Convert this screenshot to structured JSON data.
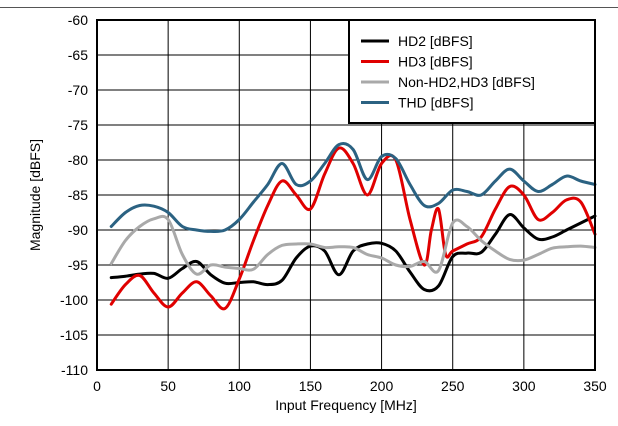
{
  "chart_data": {
    "type": "line",
    "title": "",
    "xlabel": "Input Frequency [MHz]",
    "ylabel": "Magnitude [dBFS]",
    "xlim": [
      0,
      350
    ],
    "ylim": [
      -110,
      -60
    ],
    "xticks": [
      0,
      50,
      100,
      150,
      200,
      250,
      300,
      350
    ],
    "yticks": [
      -60,
      -65,
      -70,
      -75,
      -80,
      -85,
      -90,
      -95,
      -100,
      -105,
      -110
    ],
    "xtick_labels": [
      "0",
      "50",
      "100",
      "150",
      "200",
      "250",
      "300",
      "350"
    ],
    "ytick_labels": [
      "-60",
      "-65",
      "-70",
      "-75",
      "-80",
      "-85",
      "-90",
      "-95",
      "-100",
      "-105",
      "-110"
    ],
    "grid": true,
    "legend_position": "top-right",
    "series": [
      {
        "name": "HD2 [dBFS]",
        "color": "#000000",
        "x": [
          10,
          20,
          30,
          40,
          50,
          60,
          70,
          80,
          90,
          100,
          110,
          120,
          130,
          140,
          150,
          160,
          170,
          180,
          190,
          200,
          210,
          220,
          230,
          240,
          250,
          260,
          270,
          280,
          290,
          300,
          310,
          320,
          330,
          340,
          350
        ],
        "y": [
          -96.8,
          -96.6,
          -96.3,
          -96.2,
          -96.9,
          -95.5,
          -94.5,
          -96.4,
          -97.6,
          -97.5,
          -97.4,
          -97.8,
          -97.2,
          -94.0,
          -92.3,
          -93.0,
          -96.4,
          -93.0,
          -92.0,
          -91.9,
          -93.0,
          -96.0,
          -98.5,
          -98.0,
          -93.8,
          -93.3,
          -93.2,
          -90.6,
          -87.8,
          -89.7,
          -91.3,
          -91.0,
          -90.0,
          -89.0,
          -88.0
        ]
      },
      {
        "name": "HD3 [dBFS]",
        "color": "#e00000",
        "x": [
          10,
          20,
          30,
          40,
          50,
          60,
          70,
          80,
          90,
          100,
          110,
          120,
          130,
          140,
          150,
          160,
          170,
          180,
          190,
          200,
          210,
          220,
          230,
          235,
          240,
          245,
          250,
          260,
          270,
          280,
          290,
          300,
          310,
          320,
          330,
          340,
          350
        ],
        "y": [
          -100.6,
          -97.8,
          -96.5,
          -99.0,
          -101.0,
          -99.0,
          -97.4,
          -99.4,
          -101.2,
          -97.0,
          -91.5,
          -86.5,
          -83.0,
          -85.0,
          -87.0,
          -82.0,
          -78.3,
          -80.5,
          -85.0,
          -80.5,
          -80.0,
          -88.5,
          -95.0,
          -90.0,
          -87.0,
          -93.5,
          -93.0,
          -92.0,
          -91.0,
          -87.0,
          -83.8,
          -85.0,
          -88.5,
          -87.5,
          -85.7,
          -86.0,
          -90.6
        ]
      },
      {
        "name": "Non-HD2,HD3 [dBFS]",
        "color": "#a9a9a9",
        "x": [
          10,
          20,
          30,
          40,
          50,
          60,
          70,
          80,
          90,
          100,
          110,
          120,
          130,
          140,
          150,
          160,
          170,
          180,
          190,
          200,
          210,
          220,
          230,
          240,
          250,
          260,
          270,
          280,
          290,
          300,
          310,
          320,
          330,
          340,
          350
        ],
        "y": [
          -94.8,
          -91.5,
          -89.5,
          -88.4,
          -88.5,
          -93.5,
          -96.3,
          -95.0,
          -95.3,
          -95.5,
          -95.6,
          -93.5,
          -92.2,
          -92.0,
          -92.0,
          -92.5,
          -92.4,
          -92.5,
          -93.5,
          -94.0,
          -95.0,
          -95.2,
          -94.5,
          -95.8,
          -89.0,
          -89.5,
          -91.5,
          -93.0,
          -94.2,
          -94.3,
          -93.5,
          -92.6,
          -92.4,
          -92.3,
          -92.5
        ]
      },
      {
        "name": "THD [dBFS]",
        "color": "#2b6282",
        "x": [
          10,
          20,
          30,
          40,
          50,
          60,
          70,
          80,
          90,
          100,
          110,
          120,
          130,
          140,
          150,
          160,
          170,
          180,
          190,
          200,
          210,
          220,
          230,
          240,
          250,
          260,
          270,
          280,
          290,
          300,
          310,
          320,
          330,
          340,
          350
        ],
        "y": [
          -89.5,
          -87.5,
          -86.5,
          -86.6,
          -87.5,
          -89.5,
          -90.0,
          -90.2,
          -90.0,
          -88.5,
          -86.0,
          -83.5,
          -80.5,
          -83.5,
          -83.0,
          -80.5,
          -77.8,
          -78.5,
          -82.8,
          -79.5,
          -79.8,
          -83.5,
          -86.5,
          -86.2,
          -84.3,
          -84.5,
          -85.0,
          -83.0,
          -81.3,
          -83.0,
          -84.5,
          -83.5,
          -82.3,
          -83.0,
          -83.5
        ]
      }
    ]
  }
}
